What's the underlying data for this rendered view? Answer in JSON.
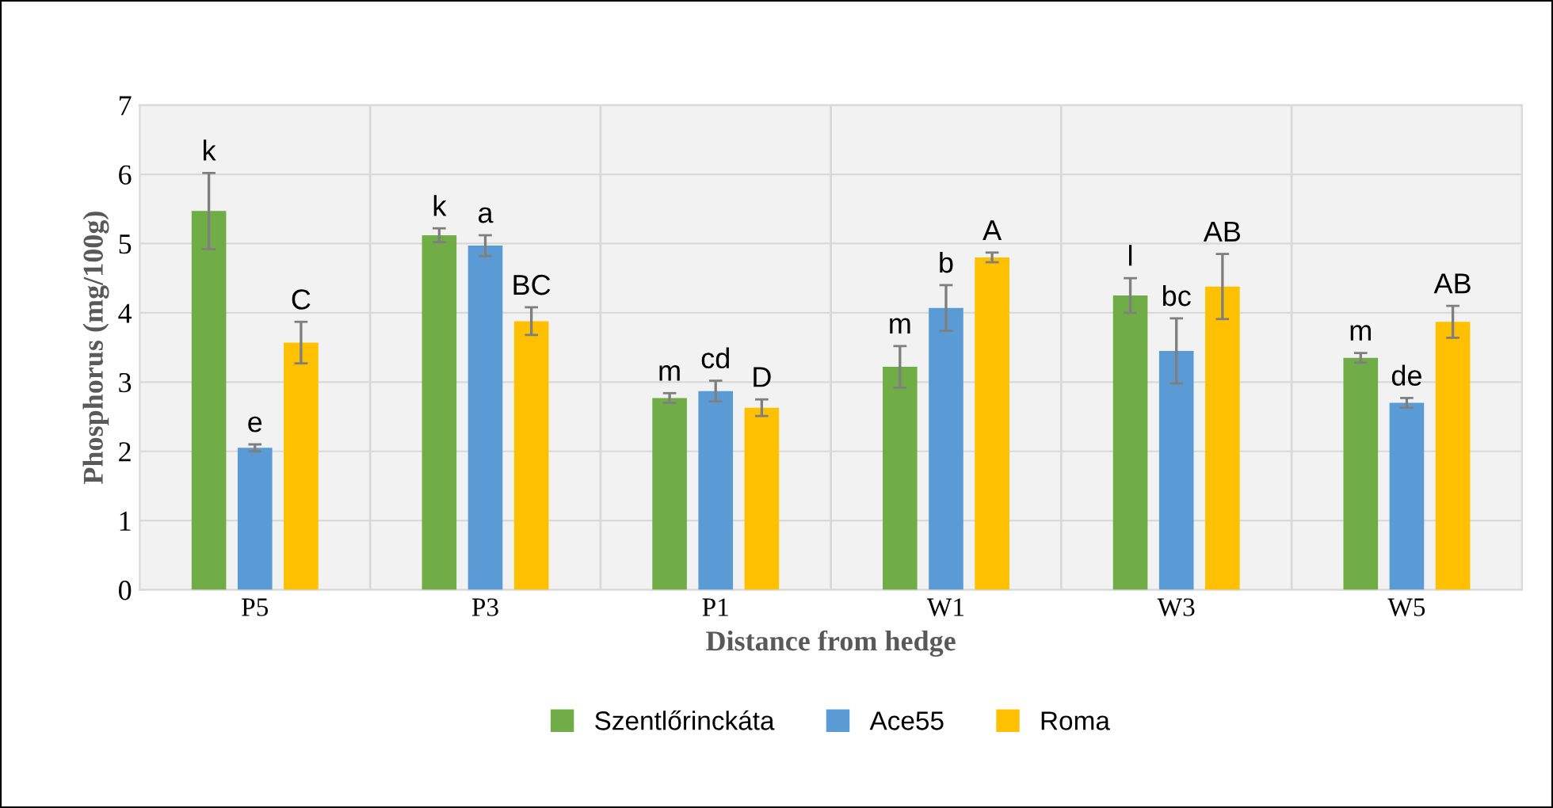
{
  "chart_data": {
    "type": "bar",
    "xlabel": "Distance from hedge",
    "ylabel": "Phosphorus (mg/100g)",
    "categories": [
      "P5",
      "P3",
      "P1",
      "W1",
      "W3",
      "W5"
    ],
    "series": [
      {
        "name": "Szentlőrinckáta",
        "color": "#70ad47",
        "values": [
          5.47,
          5.12,
          2.77,
          3.22,
          4.25,
          3.35
        ],
        "errors": [
          0.55,
          0.1,
          0.07,
          0.3,
          0.25,
          0.07
        ],
        "value_labels": [
          "k",
          "k",
          "m",
          "m",
          "l",
          "m"
        ]
      },
      {
        "name": "Ace55",
        "color": "#5b9bd5",
        "values": [
          2.05,
          4.97,
          2.87,
          4.07,
          3.45,
          2.7
        ],
        "errors": [
          0.05,
          0.15,
          0.15,
          0.33,
          0.47,
          0.07
        ],
        "value_labels": [
          "e",
          "a",
          "cd",
          "b",
          "bc",
          "de"
        ]
      },
      {
        "name": "Roma",
        "color": "#ffc000",
        "values": [
          3.57,
          3.88,
          2.63,
          4.8,
          4.38,
          3.87
        ],
        "errors": [
          0.3,
          0.2,
          0.12,
          0.07,
          0.47,
          0.23
        ],
        "value_labels": [
          "C",
          "BC",
          "D",
          "A",
          "AB",
          "AB"
        ]
      }
    ],
    "ylim": [
      0,
      7
    ],
    "yticks": [
      0,
      1,
      2,
      3,
      4,
      5,
      6,
      7
    ],
    "grid": true,
    "legend": "bottom"
  }
}
